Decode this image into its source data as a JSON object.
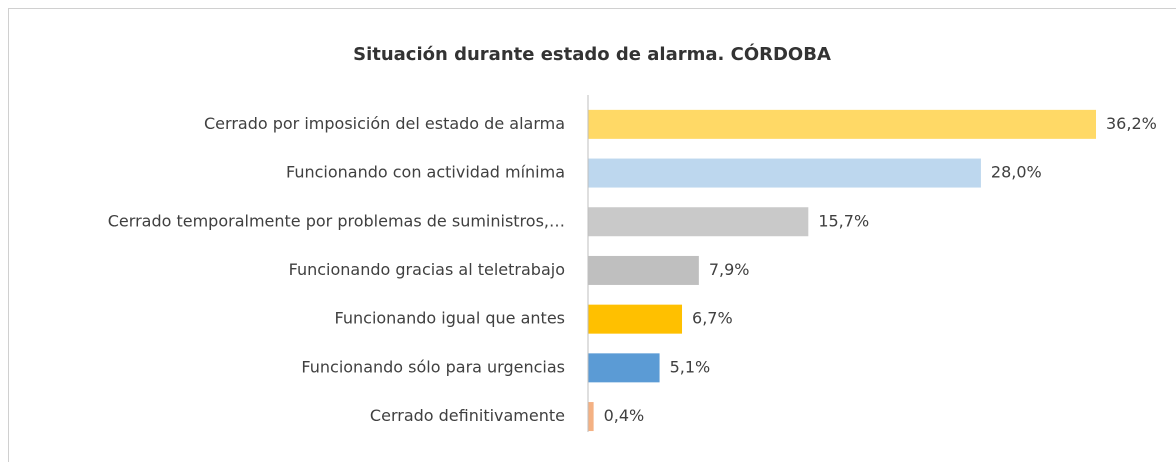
{
  "chart_data": {
    "type": "barh",
    "title": "Situación durante estado de alarma. CÓRDOBA",
    "categories": [
      "Cerrado por imposición del estado de alarma",
      "Funcionando con actividad mínima",
      "Cerrado temporalmente por problemas de suministros,…",
      "Funcionando gracias al teletrabajo",
      "Funcionando igual que antes",
      "Funcionando sólo para urgencias",
      "Cerrado definitivamente"
    ],
    "values": [
      36.2,
      28.0,
      15.7,
      7.9,
      6.7,
      5.1,
      0.4
    ],
    "value_labels": [
      "36,2%",
      "28,0%",
      "15,7%",
      "7,9%",
      "6,7%",
      "5,1%",
      "0,4%"
    ],
    "colors": [
      "#FFD966",
      "#BDD7EE",
      "#C9C9C9",
      "#BFBFBF",
      "#FFC000",
      "#5B9BD5",
      "#F4B183"
    ]
  }
}
